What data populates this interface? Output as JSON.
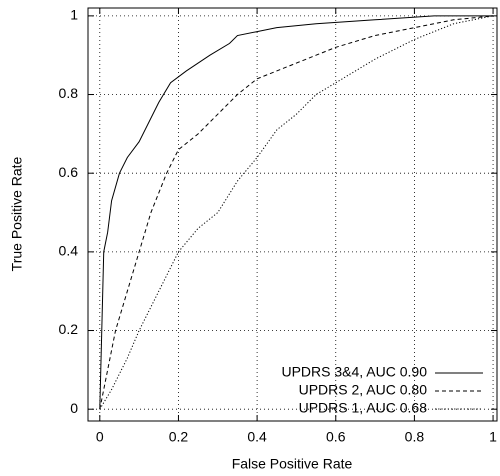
{
  "chart_data": {
    "type": "line",
    "xlabel": "False Positive Rate",
    "ylabel": "True Positive Rate",
    "xlim": [
      -0.03,
      1.01
    ],
    "ylim": [
      -0.03,
      1.02
    ],
    "xticks": [
      0,
      0.2,
      0.4,
      0.6,
      0.8,
      1
    ],
    "yticks": [
      0,
      0.2,
      0.4,
      0.6,
      0.8,
      1
    ],
    "grid": true,
    "legend": "lower right",
    "series": [
      {
        "name": "UPDRS 3&4, AUC 0.90",
        "color": "#000000",
        "dash": "solid",
        "x": [
          0,
          0.005,
          0.01,
          0.02,
          0.03,
          0.05,
          0.07,
          0.1,
          0.13,
          0.15,
          0.18,
          0.22,
          0.28,
          0.33,
          0.35,
          0.4,
          0.45,
          0.55,
          0.7,
          0.85,
          1
        ],
        "values": [
          0,
          0.2,
          0.4,
          0.45,
          0.53,
          0.6,
          0.64,
          0.68,
          0.74,
          0.78,
          0.83,
          0.86,
          0.9,
          0.93,
          0.95,
          0.96,
          0.97,
          0.98,
          0.99,
          1,
          1
        ]
      },
      {
        "name": "UPDRS 2, AUC 0.80",
        "color": "#000000",
        "dash": "dashed",
        "x": [
          0,
          0.02,
          0.04,
          0.07,
          0.1,
          0.13,
          0.17,
          0.2,
          0.25,
          0.3,
          0.35,
          0.4,
          0.5,
          0.6,
          0.7,
          0.8,
          0.9,
          1
        ],
        "values": [
          0,
          0.1,
          0.2,
          0.3,
          0.4,
          0.5,
          0.6,
          0.66,
          0.7,
          0.75,
          0.8,
          0.84,
          0.88,
          0.92,
          0.95,
          0.97,
          0.99,
          1
        ]
      },
      {
        "name": "UPDRS 1, AUC 0.68",
        "color": "#000000",
        "dash": "dotted",
        "x": [
          0,
          0.03,
          0.07,
          0.1,
          0.15,
          0.2,
          0.25,
          0.3,
          0.35,
          0.4,
          0.45,
          0.5,
          0.55,
          0.6,
          0.7,
          0.8,
          0.9,
          1
        ],
        "values": [
          0,
          0.05,
          0.13,
          0.2,
          0.3,
          0.4,
          0.46,
          0.5,
          0.58,
          0.64,
          0.71,
          0.75,
          0.8,
          0.83,
          0.89,
          0.94,
          0.98,
          1
        ]
      }
    ]
  }
}
